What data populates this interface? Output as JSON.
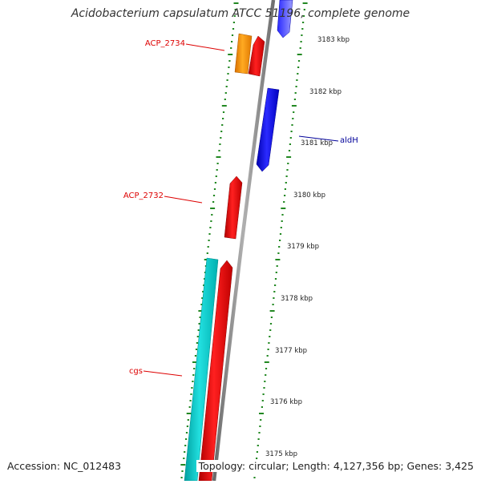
{
  "title": "Acidobacterium capsulatum ATCC 51196, complete genome",
  "footer": {
    "accession": "Accession: NC_012483",
    "summary": "Topology: circular; Length: 4,127,356 bp; Genes: 3,425"
  },
  "ruler": {
    "unit": "kbp",
    "ticks": [
      {
        "label": "3183 kbp"
      },
      {
        "label": "3182 kbp"
      },
      {
        "label": "3181 kbp"
      },
      {
        "label": "3180 kbp"
      },
      {
        "label": "3179 kbp"
      },
      {
        "label": "3178 kbp"
      },
      {
        "label": "3177 kbp"
      },
      {
        "label": "3176 kbp"
      },
      {
        "label": "3175 kbp"
      }
    ]
  },
  "gene_labels": [
    {
      "text": "ACP_2734",
      "color": "#dd0000"
    },
    {
      "text": "aldH",
      "color": "#000099"
    },
    {
      "text": "ACP_2732",
      "color": "#dd0000"
    },
    {
      "text": "cgs",
      "color": "#dd0000"
    }
  ],
  "colors": {
    "backbone": "#8a8a8a",
    "ruler_dots": "#228822",
    "forward_gene": "#ee0000",
    "reverse_gene": "#0000ee",
    "orange_gene": "#ff9900",
    "cyan_gene": "#11cccc"
  }
}
